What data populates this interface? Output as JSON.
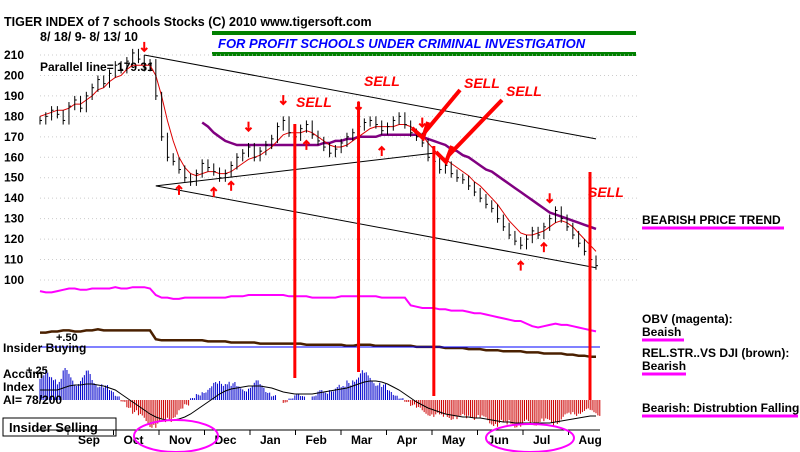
{
  "header": {
    "title": "TIGER INDEX of  7 schools Stocks  (C) 2010  www.tigersoft.com",
    "date_range": "8/ 18/ 9-  8/ 13/ 10",
    "banner": "FOR PROFIT SCHOOLS UNDER CRIMINAL INVESTIGATION",
    "parallel_line": "Parallel line= 179.31"
  },
  "colors": {
    "price": "#000000",
    "ma_short": "#dd0000",
    "ma_long": "#800080",
    "obv": "#ff00ff",
    "rel_str": "#4a2000",
    "accum_pos": "#0000cc",
    "accum_neg": "#cc0000",
    "signal": "#ff0000",
    "banner_text": "#0000ff",
    "banner_lines": "#008000"
  },
  "annotations": {
    "sell_labels": [
      "SELL",
      "SELL",
      "SELL",
      "SELL",
      "SELL"
    ],
    "insider_buying": "Insider Buying",
    "insider_selling": "Insider Selling",
    "plus50": "+.50",
    "plus25": "+.25",
    "accum_index_1": "Accum",
    "accum_index_2": "Index",
    "ai_value": "AI= 78/200"
  },
  "right_panel": {
    "trend": "BEARISH PRICE TREND",
    "obv_title": "OBV (magenta):",
    "obv_value": "Beaish",
    "rel_title": "REL.STR..VS DJI (brown):",
    "rel_value": "Bearish",
    "accum_title": "Bearish: Distrubtion Falling."
  },
  "chart_data": {
    "type": "line",
    "title": "TIGER INDEX of  7 schools Stocks  (C) 2010  www.tigersoft.com",
    "xlabel": "",
    "ylabel": "",
    "ylim": [
      100,
      215
    ],
    "yticks": [
      210,
      200,
      190,
      180,
      170,
      160,
      150,
      140,
      130,
      120,
      110,
      100
    ],
    "months": [
      "Sep",
      "Oct",
      "Nov",
      "Dec",
      "Jan",
      "Feb",
      "Mar",
      "Apr",
      "May",
      "Jun",
      "Jul",
      "Aug"
    ],
    "price_close": [
      178,
      180,
      183,
      181,
      178,
      185,
      188,
      184,
      190,
      194,
      198,
      196,
      201,
      205,
      203,
      207,
      211,
      208,
      204,
      206,
      190,
      170,
      160,
      158,
      154,
      150,
      148,
      152,
      157,
      155,
      153,
      150,
      152,
      156,
      160,
      162,
      165,
      160,
      163,
      166,
      169,
      175,
      178,
      172,
      170,
      174,
      176,
      171,
      168,
      165,
      162,
      164,
      167,
      170,
      172,
      175,
      177,
      178,
      176,
      173,
      175,
      178,
      180,
      176,
      172,
      170,
      167,
      160,
      158,
      154,
      156,
      152,
      150,
      149,
      146,
      143,
      140,
      137,
      135,
      130,
      126,
      122,
      119,
      117,
      120,
      124,
      122,
      126,
      130,
      134,
      130,
      126,
      122,
      118,
      114,
      110,
      107
    ],
    "ma_short": [
      180,
      181,
      182,
      183,
      183,
      184,
      186,
      186,
      188,
      190,
      193,
      194,
      197,
      199,
      200,
      203,
      205,
      205,
      205,
      205,
      200,
      190,
      178,
      168,
      160,
      155,
      152,
      151,
      152,
      153,
      153,
      152,
      152,
      153,
      155,
      157,
      159,
      160,
      161,
      163,
      165,
      168,
      171,
      172,
      172,
      172,
      173,
      172,
      170,
      168,
      166,
      165,
      165,
      166,
      168,
      170,
      172,
      174,
      175,
      175,
      175,
      175,
      176,
      176,
      175,
      173,
      171,
      167,
      164,
      160,
      159,
      157,
      155,
      153,
      151,
      148,
      146,
      143,
      140,
      137,
      133,
      129,
      126,
      123,
      122,
      122,
      123,
      124,
      126,
      128,
      129,
      128,
      126,
      123,
      120,
      117,
      114
    ],
    "ma_long_start_index": 28,
    "ma_long": [
      177,
      175,
      172,
      170,
      168,
      167,
      166,
      166,
      166,
      166,
      166,
      166,
      166,
      166,
      166,
      166,
      166,
      166,
      166,
      166,
      166,
      167,
      167,
      168,
      168,
      169,
      169,
      170,
      170,
      170,
      170,
      171,
      171,
      171,
      171,
      171,
      171,
      171,
      170,
      169,
      168,
      167,
      166,
      164,
      163,
      161,
      160,
      158,
      156,
      154,
      153,
      151,
      149,
      147,
      145,
      143,
      141,
      139,
      137,
      135,
      133,
      132,
      131,
      130,
      129,
      128,
      127,
      126,
      125
    ],
    "obv": [
      7,
      8,
      8,
      7,
      6,
      5,
      5,
      6,
      6,
      5,
      5,
      5,
      5,
      4,
      5,
      5,
      4,
      4,
      4,
      5,
      10,
      12,
      12,
      13,
      13,
      12,
      12,
      12,
      12,
      12,
      12,
      12,
      12,
      11,
      11,
      11,
      10,
      10,
      10,
      10,
      10,
      10,
      10,
      11,
      11,
      11,
      11,
      12,
      12,
      12,
      12,
      12,
      11,
      11,
      11,
      11,
      11,
      11,
      11,
      12,
      12,
      12,
      12,
      12,
      18,
      19,
      20,
      20,
      20,
      21,
      21,
      22,
      22,
      22,
      23,
      24,
      24,
      25,
      26,
      27,
      28,
      29,
      30,
      30,
      32,
      34,
      35,
      34,
      33,
      32,
      33,
      33,
      34,
      35,
      36,
      37,
      38
    ],
    "rel_str": [
      46,
      46,
      45,
      45,
      44,
      44,
      45,
      45,
      44,
      44,
      43,
      44,
      44,
      44,
      44,
      44,
      44,
      44,
      44,
      44,
      52,
      53,
      53,
      53,
      53,
      53,
      53,
      53,
      53,
      54,
      54,
      54,
      54,
      55,
      55,
      55,
      55,
      55,
      56,
      56,
      56,
      56,
      56,
      56,
      56,
      56,
      57,
      57,
      57,
      57,
      57,
      57,
      57,
      58,
      58,
      57,
      57,
      57,
      58,
      58,
      58,
      58,
      58,
      58,
      58,
      59,
      59,
      59,
      59,
      59,
      60,
      60,
      60,
      60,
      61,
      61,
      61,
      62,
      62,
      62,
      63,
      63,
      63,
      63,
      64,
      64,
      64,
      65,
      65,
      65,
      65,
      66,
      66,
      67,
      67,
      68,
      68
    ],
    "accum_index": [
      0.25,
      0.3,
      0.28,
      0.22,
      0.32,
      0.27,
      0.2,
      0.25,
      0.3,
      0.22,
      0.18,
      0.15,
      0.1,
      0.05,
      -0.02,
      -0.08,
      -0.14,
      -0.2,
      -0.24,
      -0.28,
      -0.3,
      -0.26,
      -0.22,
      -0.18,
      -0.12,
      -0.06,
      0.02,
      0.06,
      0.1,
      0.14,
      0.18,
      0.2,
      0.22,
      0.18,
      0.14,
      0.12,
      0.16,
      0.2,
      0.16,
      0.1,
      0.05,
      0.0,
      -0.03,
      0.02,
      0.06,
      0.04,
      0.0,
      0.05,
      0.1,
      0.08,
      0.12,
      0.16,
      0.14,
      0.2,
      0.26,
      0.3,
      0.28,
      0.24,
      0.2,
      0.16,
      0.1,
      0.06,
      0.02,
      -0.02,
      -0.06,
      -0.1,
      -0.14,
      -0.16,
      -0.18,
      -0.2,
      -0.18,
      -0.2,
      -0.22,
      -0.2,
      -0.18,
      -0.2,
      -0.22,
      -0.24,
      -0.26,
      -0.28,
      -0.3,
      -0.26,
      -0.28,
      -0.3,
      -0.28,
      -0.26,
      -0.24,
      -0.26,
      -0.28,
      -0.24,
      -0.2,
      -0.18,
      -0.16,
      -0.14,
      -0.12,
      -0.14,
      -0.16
    ],
    "accum_line": [
      0.1,
      0.1,
      0.1,
      0.1,
      0.12,
      0.14,
      0.15,
      0.15,
      0.16,
      0.16,
      0.15,
      0.14,
      0.12,
      0.1,
      0.06,
      0.02,
      -0.02,
      -0.06,
      -0.1,
      -0.14,
      -0.17,
      -0.19,
      -0.2,
      -0.2,
      -0.19,
      -0.17,
      -0.14,
      -0.1,
      -0.06,
      -0.02,
      0.02,
      0.06,
      0.09,
      0.11,
      0.12,
      0.13,
      0.14,
      0.14,
      0.14,
      0.13,
      0.12,
      0.1,
      0.08,
      0.07,
      0.06,
      0.06,
      0.06,
      0.06,
      0.07,
      0.08,
      0.09,
      0.1,
      0.11,
      0.12,
      0.14,
      0.16,
      0.18,
      0.19,
      0.19,
      0.18,
      0.16,
      0.13,
      0.1,
      0.06,
      0.02,
      -0.02,
      -0.05,
      -0.08,
      -0.1,
      -0.12,
      -0.14,
      -0.15,
      -0.16,
      -0.17,
      -0.17,
      -0.18,
      -0.18,
      -0.19,
      -0.2,
      -0.21,
      -0.22,
      -0.22,
      -0.23,
      -0.23,
      -0.23,
      -0.23,
      -0.23,
      -0.23,
      -0.23,
      -0.22,
      -0.21,
      -0.2,
      -0.19,
      -0.18,
      -0.17,
      -0.16,
      -0.16
    ],
    "upper_channel": [
      [
        18,
        210
      ],
      [
        96,
        169
      ]
    ],
    "lower_channel": [
      [
        20,
        146
      ],
      [
        96,
        106
      ]
    ],
    "support_line": [
      [
        20,
        146
      ],
      [
        68,
        162
      ]
    ],
    "sell_signal_index": [
      44,
      55,
      68,
      97
    ],
    "buy_arrow_index": [
      24,
      30,
      33,
      46,
      59,
      83,
      87
    ],
    "sell_arrow_index": [
      18,
      36,
      42,
      55,
      66,
      88
    ],
    "highlight_ellipses_month_index": [
      2,
      9.7
    ]
  }
}
